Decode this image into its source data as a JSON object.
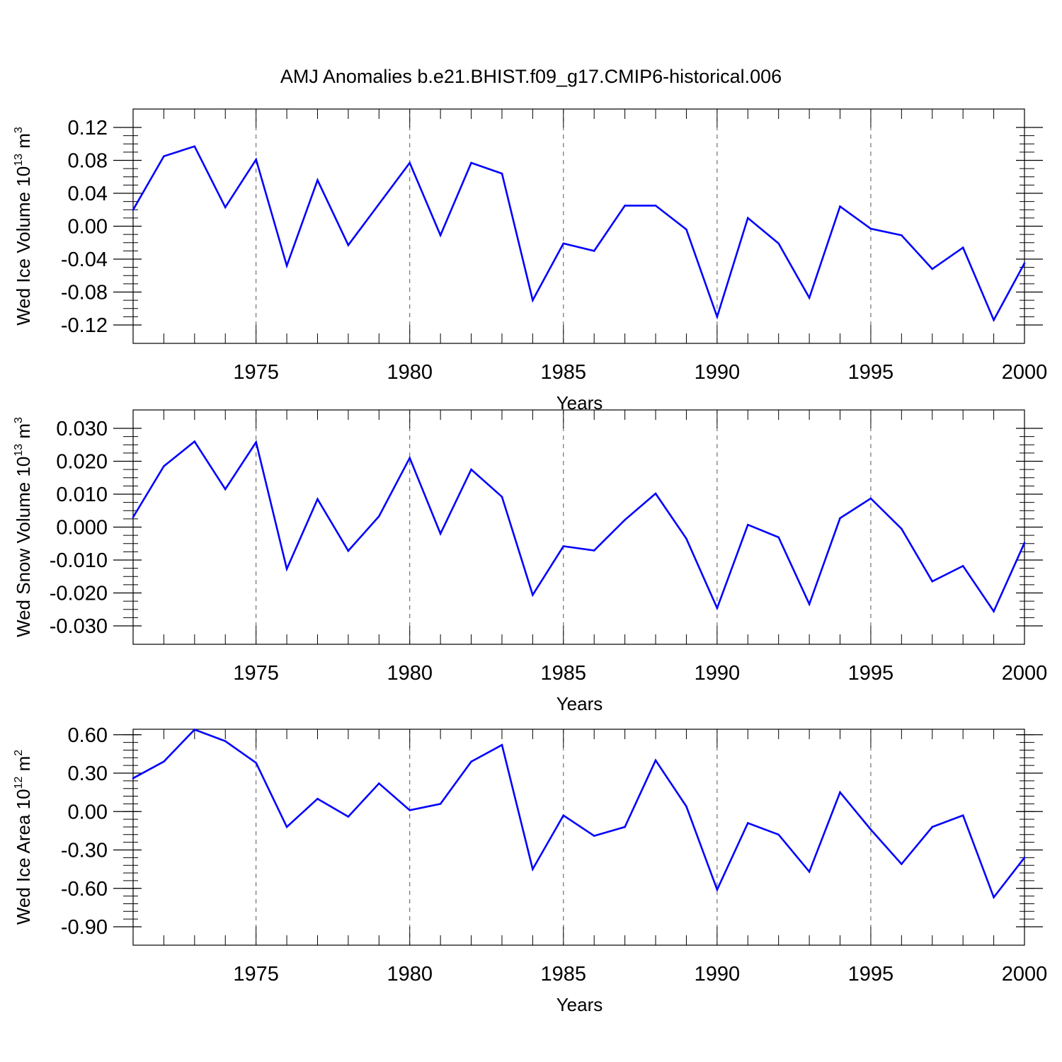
{
  "figure": {
    "title": "AMJ Anomalies b.e21.BHIST.f09_g17.CMIP6-historical.006",
    "line_color": "#0000ff",
    "grid_color": "#555555"
  },
  "chart_data": [
    {
      "type": "line",
      "title": "AMJ Anomalies b.e21.BHIST.f09_g17.CMIP6-historical.006",
      "xlabel": "Years",
      "ylabel": {
        "main": "Wed Ice Volume 10",
        "exp": "13",
        "unit": " m",
        "unit_exp": "3"
      },
      "xlim": [
        1971,
        2000
      ],
      "ylim": [
        -0.12,
        0.12
      ],
      "xticks": [
        1975,
        1980,
        1985,
        1990,
        1995,
        2000
      ],
      "yticks": [
        -0.12,
        -0.08,
        -0.04,
        0.0,
        0.04,
        0.08,
        0.12
      ],
      "ytick_labels": [
        "-0.12",
        "-0.08",
        "-0.04",
        "0.00",
        "0.04",
        "0.08",
        "0.12"
      ],
      "y_minor_step": 0.01,
      "grid": {
        "x": "dashed vertical at major ticks",
        "y": false
      },
      "x": [
        1971,
        1972,
        1973,
        1974,
        1975,
        1976,
        1977,
        1978,
        1979,
        1980,
        1981,
        1982,
        1983,
        1984,
        1985,
        1986,
        1987,
        1988,
        1989,
        1990,
        1991,
        1992,
        1993,
        1994,
        1995,
        1996,
        1997,
        1998,
        1999,
        2000
      ],
      "values": [
        0.02,
        0.085,
        0.097,
        0.023,
        0.081,
        -0.048,
        0.056,
        -0.023,
        0.027,
        0.077,
        -0.011,
        0.077,
        0.064,
        -0.09,
        -0.021,
        -0.03,
        0.025,
        0.025,
        -0.004,
        -0.11,
        0.01,
        -0.021,
        -0.087,
        0.024,
        -0.003,
        -0.011,
        -0.052,
        -0.026,
        -0.114,
        -0.045
      ]
    },
    {
      "type": "line",
      "xlabel": "Years",
      "ylabel": {
        "main": "Wed Snow Volume 10",
        "exp": "13",
        "unit": " m",
        "unit_exp": "3"
      },
      "xlim": [
        1971,
        2000
      ],
      "ylim": [
        -0.03,
        0.03
      ],
      "xticks": [
        1975,
        1980,
        1985,
        1990,
        1995,
        2000
      ],
      "yticks": [
        -0.03,
        -0.02,
        -0.01,
        0.0,
        0.01,
        0.02,
        0.03
      ],
      "ytick_labels": [
        "-0.030",
        "-0.020",
        "-0.010",
        "0.000",
        "0.010",
        "0.020",
        "0.030"
      ],
      "y_minor_step": 0.0025,
      "grid": {
        "x": "dashed vertical at major ticks",
        "y": false
      },
      "x": [
        1971,
        1972,
        1973,
        1974,
        1975,
        1976,
        1977,
        1978,
        1979,
        1980,
        1981,
        1982,
        1983,
        1984,
        1985,
        1986,
        1987,
        1988,
        1989,
        1990,
        1991,
        1992,
        1993,
        1994,
        1995,
        1996,
        1997,
        1998,
        1999,
        2000
      ],
      "values": [
        0.003,
        0.0185,
        0.026,
        0.0115,
        0.0258,
        -0.0127,
        0.0085,
        -0.0072,
        0.0033,
        0.021,
        -0.002,
        0.0175,
        0.0092,
        -0.0206,
        -0.0058,
        -0.0071,
        0.0022,
        0.0102,
        -0.0035,
        -0.0246,
        0.0007,
        -0.0031,
        -0.0234,
        0.0027,
        0.0087,
        -0.0005,
        -0.0165,
        -0.0118,
        -0.0256,
        -0.0048
      ]
    },
    {
      "type": "line",
      "xlabel": "Years",
      "ylabel": {
        "main": "Wed Ice Area 10",
        "exp": "12",
        "unit": " m",
        "unit_exp": "2"
      },
      "xlim": [
        1971,
        2000
      ],
      "ylim": [
        -0.9,
        0.9
      ],
      "xticks": [
        1975,
        1980,
        1985,
        1990,
        1995,
        2000
      ],
      "yticks": [
        -0.9,
        -0.6,
        -0.3,
        0.0,
        0.3,
        0.6
      ],
      "ytick_labels": [
        "-0.90",
        "-0.60",
        "-0.30",
        "0.00",
        "0.30",
        "0.60"
      ],
      "y_minor_step": 0.06,
      "grid": {
        "x": "dashed vertical at major ticks",
        "y": false
      },
      "x": [
        1971,
        1972,
        1973,
        1974,
        1975,
        1976,
        1977,
        1978,
        1979,
        1980,
        1981,
        1982,
        1983,
        1984,
        1985,
        1986,
        1987,
        1988,
        1989,
        1990,
        1991,
        1992,
        1993,
        1994,
        1995,
        1996,
        1997,
        1998,
        1999,
        2000
      ],
      "values": [
        0.26,
        0.39,
        0.64,
        0.55,
        0.38,
        -0.12,
        0.1,
        -0.04,
        0.22,
        0.01,
        0.06,
        0.39,
        0.52,
        -0.45,
        -0.03,
        -0.19,
        -0.12,
        0.4,
        0.04,
        -0.61,
        -0.09,
        -0.18,
        -0.47,
        0.15,
        -0.14,
        -0.41,
        -0.12,
        -0.03,
        -0.67,
        -0.36
      ]
    }
  ]
}
